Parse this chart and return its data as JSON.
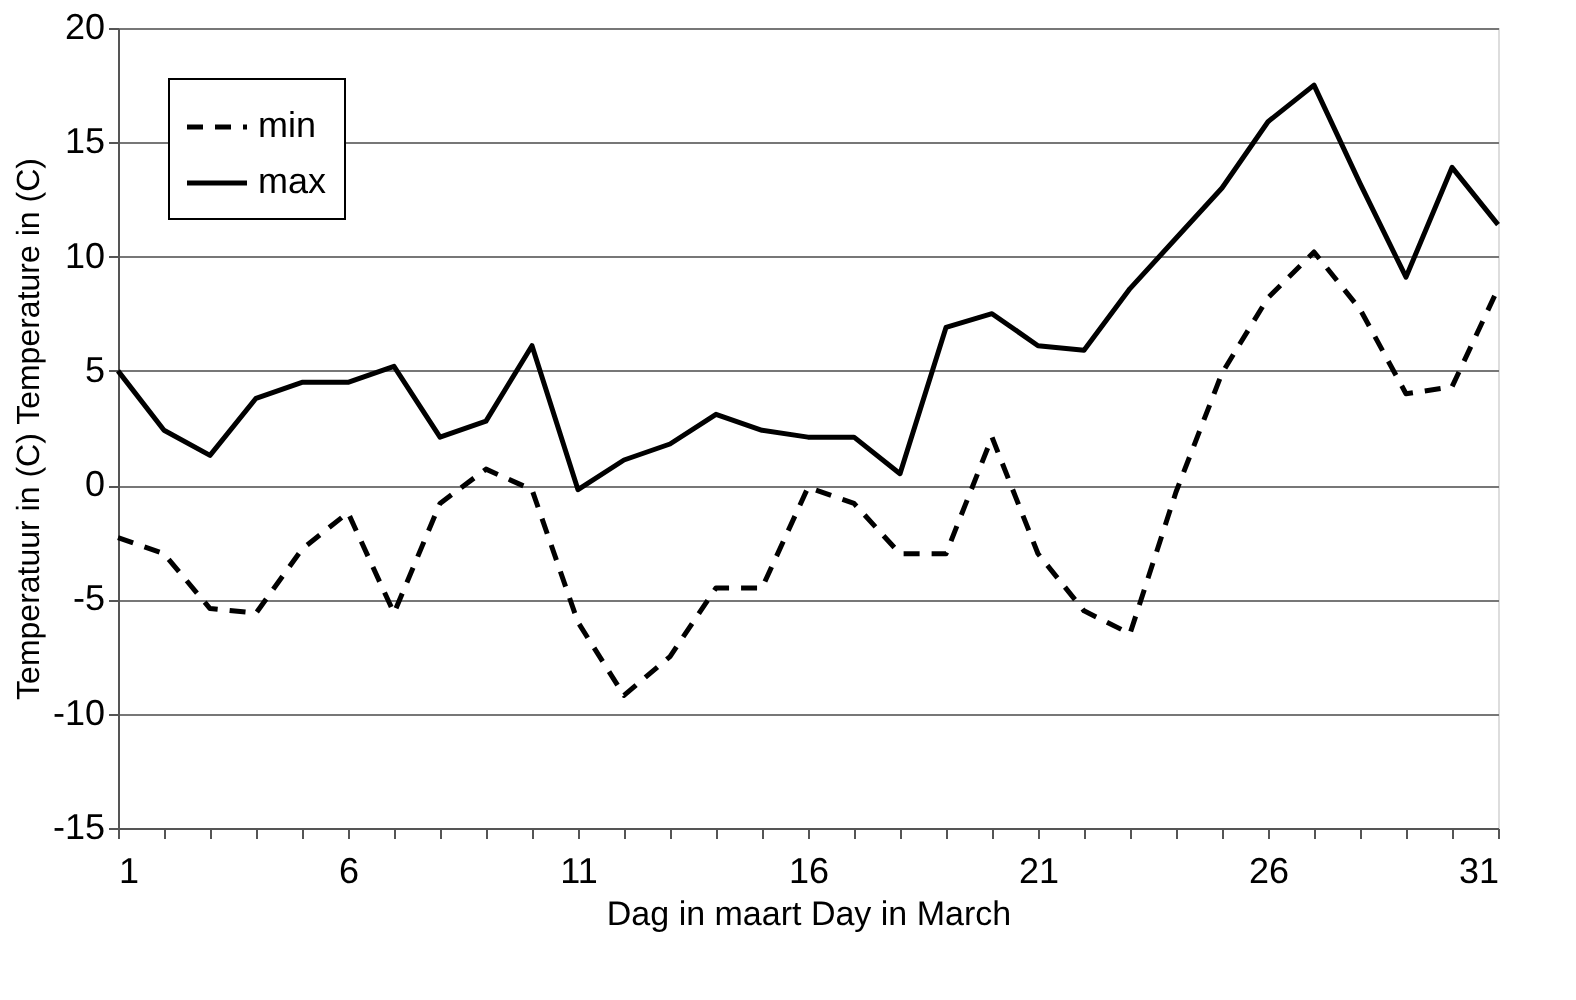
{
  "chart_data": {
    "type": "line",
    "xlabel": "Dag in maart Day in March",
    "ylabel": "Temperatuur in (C) Temperature in (C)",
    "x": [
      1,
      2,
      3,
      4,
      5,
      6,
      7,
      8,
      9,
      10,
      11,
      12,
      13,
      14,
      15,
      16,
      17,
      18,
      19,
      20,
      21,
      22,
      23,
      24,
      25,
      26,
      27,
      28,
      29,
      30,
      31
    ],
    "series": [
      {
        "name": "min",
        "color": "#000000",
        "line_style": "dashed",
        "values": [
          -2.3,
          -3,
          -5.4,
          -5.6,
          -2.8,
          -1.2,
          -5.6,
          -0.8,
          0.7,
          -0.2,
          -6,
          -9.2,
          -7.5,
          -4.5,
          -4.5,
          -0.1,
          -0.8,
          -3,
          -3,
          2.1,
          -3,
          -5.5,
          -6.5,
          -0.3,
          4.9,
          8.2,
          10.2,
          7.7,
          4,
          4.3,
          8.6
        ]
      },
      {
        "name": "max",
        "color": "#000000",
        "line_style": "solid",
        "values": [
          5,
          2.4,
          1.3,
          3.8,
          4.5,
          4.5,
          5.2,
          2.1,
          2.8,
          6.1,
          -0.2,
          1.1,
          1.8,
          3.1,
          2.4,
          2.1,
          2.1,
          0.5,
          6.9,
          7.5,
          6.1,
          5.9,
          8.6,
          10.8,
          13,
          15.9,
          17.5,
          13.2,
          9.1,
          13.9,
          11.4
        ]
      }
    ],
    "xlim": [
      1,
      31
    ],
    "xticks": [
      1,
      {
        "value": 2,
        "label": null
      },
      {
        "value": 3,
        "label": null
      },
      {
        "value": 4,
        "label": null
      },
      {
        "value": 5,
        "label": null
      },
      6,
      {
        "value": 7,
        "label": null
      },
      {
        "value": 8,
        "label": null
      },
      {
        "value": 9,
        "label": null
      },
      {
        "value": 10,
        "label": null
      },
      11,
      {
        "value": 12,
        "label": null
      },
      {
        "value": 13,
        "label": null
      },
      {
        "value": 14,
        "label": null
      },
      {
        "value": 15,
        "label": null
      },
      16,
      {
        "value": 17,
        "label": null
      },
      {
        "value": 18,
        "label": null
      },
      {
        "value": 19,
        "label": null
      },
      {
        "value": 20,
        "label": null
      },
      21,
      {
        "value": 22,
        "label": null
      },
      {
        "value": 23,
        "label": null
      },
      {
        "value": 24,
        "label": null
      },
      {
        "value": 25,
        "label": null
      },
      26,
      {
        "value": 27,
        "label": null
      },
      {
        "value": 28,
        "label": null
      },
      {
        "value": 29,
        "label": null
      },
      {
        "value": 30,
        "label": null
      },
      31
    ],
    "ylim": [
      -15,
      20
    ],
    "yticks": [
      -15,
      -10,
      -5,
      0,
      5,
      10,
      15,
      20
    ],
    "grid": "y",
    "legend": "top left",
    "marker": "none"
  }
}
